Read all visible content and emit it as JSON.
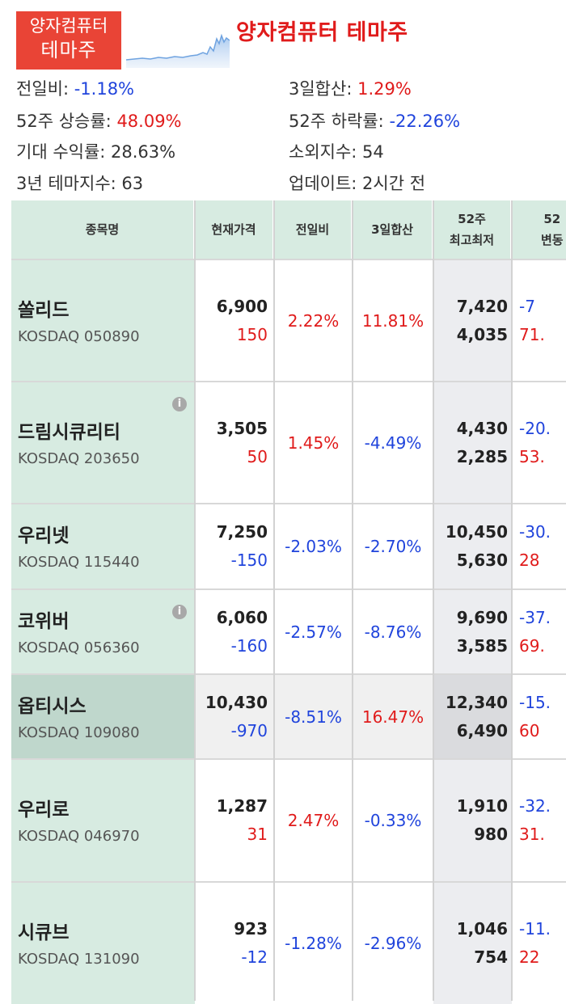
{
  "header": {
    "badge_line1": "양자컴퓨터",
    "badge_line2": "테마주",
    "title": "양자컴퓨터 테마주"
  },
  "stats": {
    "prev_day": {
      "label": "전일비: ",
      "value": "-1.18%"
    },
    "three_day": {
      "label": "3일합산: ",
      "value": "1.29%"
    },
    "week52_up": {
      "label": "52주 상승률: ",
      "value": "48.09%"
    },
    "week52_down": {
      "label": "52주 하락률: ",
      "value": "-22.26%"
    },
    "expected_return": {
      "label": "기대 수익률: ",
      "value": "28.63%"
    },
    "neglect_index": {
      "label": "소외지수: ",
      "value": "54"
    },
    "three_year_index": {
      "label": "3년 테마지수: ",
      "value": "63"
    },
    "update": {
      "label": "업데이트: ",
      "value": "2시간 전"
    }
  },
  "table": {
    "headers": {
      "name": "종목명",
      "price": "현재가격",
      "prev_day": "전일비",
      "three_day": "3일합산",
      "week52_l1": "52주",
      "week52_l2": "최고최저",
      "range_l1": "52",
      "range_l2": "변동"
    },
    "rows": [
      {
        "name": "쏠리드",
        "market": "KOSDAQ 050890",
        "price": "6,900",
        "change": "150",
        "pct": "2.22%",
        "three": "11.81%",
        "high": "7,420",
        "low": "4,035",
        "r1": "-7",
        "r2": "71.",
        "info": false
      },
      {
        "name": "드림시큐리티",
        "market": "KOSDAQ 203650",
        "price": "3,505",
        "change": "50",
        "pct": "1.45%",
        "three": "-4.49%",
        "high": "4,430",
        "low": "2,285",
        "r1": "-20.",
        "r2": "53.",
        "info": true
      },
      {
        "name": "우리넷",
        "market": "KOSDAQ 115440",
        "price": "7,250",
        "change": "-150",
        "pct": "-2.03%",
        "three": "-2.70%",
        "high": "10,450",
        "low": "5,630",
        "r1": "-30.",
        "r2": "28",
        "info": false
      },
      {
        "name": "코위버",
        "market": "KOSDAQ 056360",
        "price": "6,060",
        "change": "-160",
        "pct": "-2.57%",
        "three": "-8.76%",
        "high": "9,690",
        "low": "3,585",
        "r1": "-37.",
        "r2": "69.",
        "info": true
      },
      {
        "name": "옵티시스",
        "market": "KOSDAQ 109080",
        "price": "10,430",
        "change": "-970",
        "pct": "-8.51%",
        "three": "16.47%",
        "high": "12,340",
        "low": "6,490",
        "r1": "-15.",
        "r2": "60",
        "info": false
      },
      {
        "name": "우리로",
        "market": "KOSDAQ 046970",
        "price": "1,287",
        "change": "31",
        "pct": "2.47%",
        "three": "-0.33%",
        "high": "1,910",
        "low": "980",
        "r1": "-32.",
        "r2": "31.",
        "info": false
      },
      {
        "name": "시큐브",
        "market": "KOSDAQ 131090",
        "price": "923",
        "change": "-12",
        "pct": "-1.28%",
        "three": "-2.96%",
        "high": "1,046",
        "low": "754",
        "r1": "-11.",
        "r2": "22",
        "info": false
      }
    ]
  },
  "colors": {
    "up": "#e01b1b",
    "down": "#2044dc",
    "badge": "#e94436",
    "name_col": "#d7ebe1"
  },
  "icons": {
    "info": "info-circle-icon",
    "sparkline": "sparkline-chart-icon"
  }
}
